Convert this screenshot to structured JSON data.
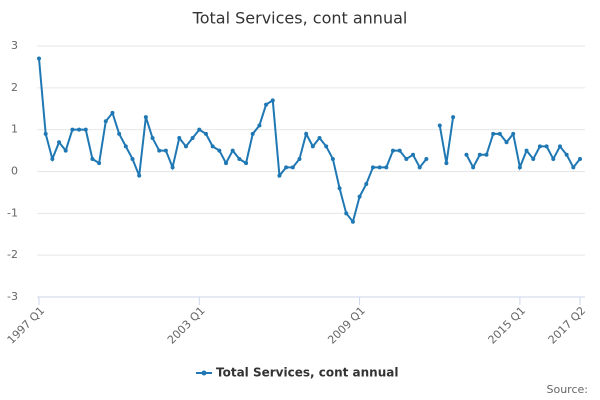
{
  "chart_data": {
    "type": "line",
    "title": "Total Services, cont annual",
    "source": "Source:",
    "categories": [
      "1997 Q1",
      null,
      null,
      null,
      null,
      null,
      null,
      null,
      null,
      null,
      null,
      null,
      null,
      null,
      null,
      null,
      null,
      null,
      null,
      null,
      null,
      null,
      null,
      null,
      "2003 Q1",
      null,
      null,
      null,
      null,
      null,
      null,
      null,
      null,
      null,
      null,
      null,
      null,
      null,
      null,
      null,
      null,
      null,
      null,
      null,
      null,
      null,
      null,
      null,
      "2009 Q1",
      null,
      null,
      null,
      null,
      null,
      null,
      null,
      null,
      null,
      null,
      null,
      null,
      null,
      null,
      null,
      null,
      null,
      null,
      null,
      null,
      null,
      null,
      null,
      "2015 Q1",
      null,
      null,
      null,
      null,
      null,
      null,
      null,
      null,
      "2017 Q2"
    ],
    "series": [
      {
        "name": "Total Services, cont annual",
        "color": "#1f78b4",
        "values": [
          2.7,
          0.9,
          0.3,
          0.7,
          0.5,
          1.0,
          1.0,
          1.0,
          0.3,
          0.2,
          1.2,
          1.4,
          0.9,
          0.6,
          0.3,
          -0.1,
          1.3,
          0.8,
          0.5,
          0.5,
          0.1,
          0.8,
          0.6,
          0.8,
          1.0,
          0.9,
          0.6,
          0.5,
          0.2,
          0.5,
          0.3,
          0.2,
          0.9,
          1.1,
          1.6,
          1.7,
          -0.1,
          0.1,
          0.1,
          0.3,
          0.9,
          0.6,
          0.8,
          0.6,
          0.3,
          -0.4,
          -1.0,
          -1.2,
          -0.6,
          -0.3,
          0.1,
          0.1,
          0.1,
          0.5,
          0.5,
          0.3,
          0.4,
          0.1,
          0.3,
          null,
          1.1,
          0.2,
          1.3,
          null,
          0.4,
          0.1,
          0.4,
          0.4,
          0.9,
          0.9,
          0.7,
          0.9,
          0.1,
          0.5,
          0.3,
          0.6,
          0.6,
          0.3,
          0.6,
          0.4,
          0.1,
          0.3
        ]
      }
    ],
    "ylim": [
      -3,
      3
    ],
    "yticks": [
      -3,
      -2,
      -1,
      0,
      1,
      2,
      3
    ],
    "grid": true
  }
}
